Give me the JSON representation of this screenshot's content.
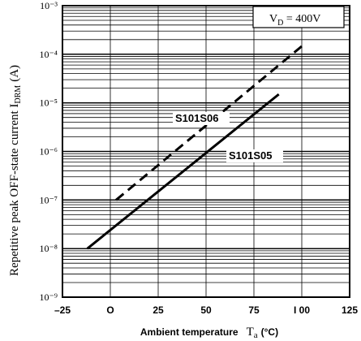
{
  "chart_data": {
    "type": "line",
    "title": "",
    "xlabel": "Ambient temperature",
    "xlabel_symbol": "T",
    "xlabel_sub": "a",
    "xlabel_unit": "(°C)",
    "ylabel": "Repetitive peak OFF-state current I",
    "ylabel_sub": "DRM",
    "ylabel_unit": "(A)",
    "xlim": [
      -25,
      125
    ],
    "ylog": true,
    "ylim_exp": [
      -9,
      -3
    ],
    "x_ticks": [
      -25,
      0,
      25,
      50,
      75,
      100,
      125
    ],
    "x_tick_labels": [
      "–25",
      "O",
      "25",
      "50",
      "75",
      "I 00",
      "125"
    ],
    "y_tick_labels": [
      "10⁻⁹",
      "10⁻⁸",
      "10⁻⁷",
      "10⁻⁶",
      "10⁻⁵",
      "10⁻⁴",
      "10⁻³"
    ],
    "grid": true,
    "condition": "V",
    "condition_sub": "D",
    "condition_value": " = 400V",
    "series": [
      {
        "name": "S101S06",
        "style": "dashed",
        "points": [
          [
            3,
            1e-07
          ],
          [
            102,
            0.00017
          ]
        ]
      },
      {
        "name": "S101S05",
        "style": "solid",
        "points": [
          [
            -12,
            1e-08
          ],
          [
            88,
            1.5e-05
          ]
        ]
      }
    ]
  }
}
